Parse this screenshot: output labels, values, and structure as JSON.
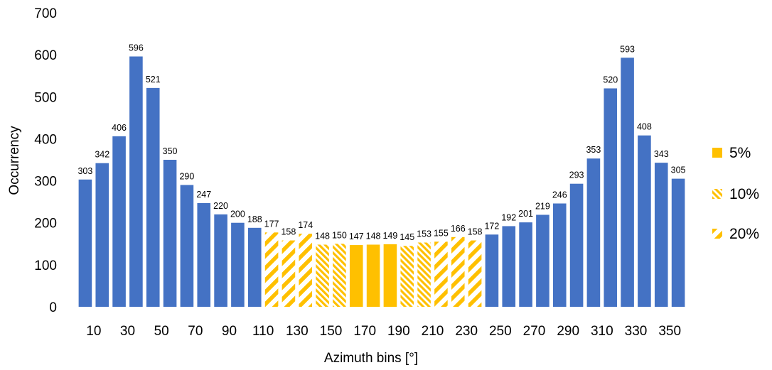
{
  "chart_data": {
    "type": "bar",
    "title": "",
    "xlabel": "Azimuth bins [°]",
    "ylabel": "Occurrency",
    "ylim": [
      0,
      700
    ],
    "yticks": [
      0,
      100,
      200,
      300,
      400,
      500,
      600,
      700
    ],
    "grid": false,
    "legend_position": "right",
    "bin_centers": [
      5,
      15,
      25,
      35,
      45,
      55,
      65,
      75,
      85,
      95,
      105,
      115,
      125,
      135,
      145,
      155,
      165,
      175,
      185,
      195,
      205,
      215,
      225,
      235,
      245,
      255,
      265,
      275,
      285,
      295,
      305,
      315,
      325,
      335,
      345,
      355
    ],
    "values": [
      303,
      342,
      406,
      596,
      521,
      350,
      290,
      247,
      220,
      200,
      188,
      177,
      158,
      174,
      148,
      150,
      147,
      148,
      149,
      145,
      153,
      155,
      166,
      158,
      172,
      192,
      201,
      219,
      246,
      293,
      353,
      520,
      593,
      408,
      343,
      305
    ],
    "data_labels": [
      "303",
      "342",
      "406",
      "596",
      "521",
      "350",
      "290",
      "247",
      "220",
      "200",
      "188",
      "177",
      "158",
      "174",
      "148",
      "150",
      "147",
      "148",
      "149",
      "145",
      "153",
      "155",
      "166",
      "158",
      "172",
      "192",
      "201",
      "219",
      "246",
      "293",
      "353",
      "520",
      "593",
      "408",
      "343",
      "305"
    ],
    "x_tick_labels": [
      "10",
      "30",
      "50",
      "70",
      "90",
      "110",
      "130",
      "150",
      "170",
      "190",
      "210",
      "230",
      "250",
      "270",
      "290",
      "310",
      "330",
      "350"
    ],
    "bar_fill": [
      "base",
      "base",
      "base",
      "base",
      "base",
      "base",
      "base",
      "base",
      "base",
      "base",
      "base",
      "p20",
      "p20",
      "p20",
      "p10",
      "p10",
      "p5",
      "p5",
      "p5",
      "p10",
      "p10",
      "p20",
      "p20",
      "p20",
      "base",
      "base",
      "base",
      "base",
      "base",
      "base",
      "base",
      "base",
      "base",
      "base",
      "base",
      "base"
    ],
    "legend": [
      {
        "key": "p5",
        "label": "5%"
      },
      {
        "key": "p10",
        "label": "10%"
      },
      {
        "key": "p20",
        "label": "20%"
      }
    ],
    "colors": {
      "base": "#4472C4",
      "highlight": "#FFC000"
    }
  }
}
